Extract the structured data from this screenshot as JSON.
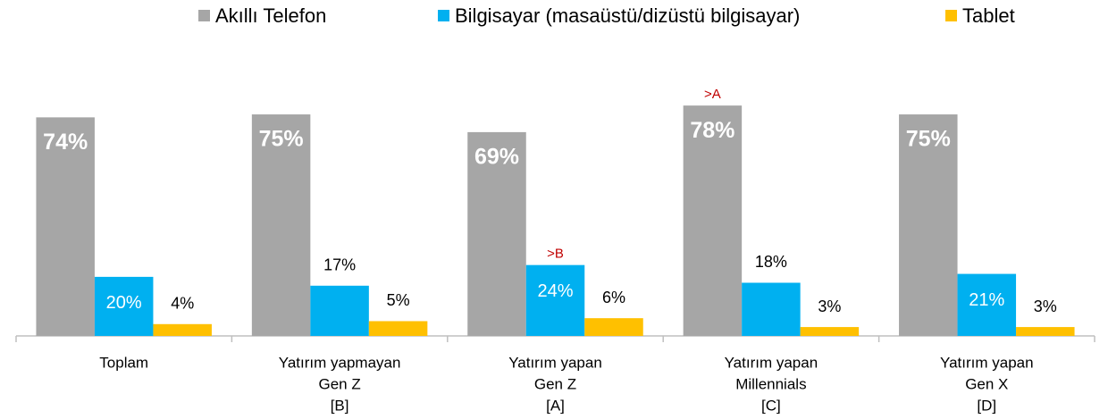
{
  "chart_data": {
    "type": "bar",
    "categories": [
      [
        "Toplam"
      ],
      [
        "Yatırım yapmayan",
        "Gen Z",
        "[B]"
      ],
      [
        "Yatırım yapan",
        "Gen Z",
        "[A]"
      ],
      [
        "Yatırım yapan",
        "Millennials",
        "[C]"
      ],
      [
        "Yatırım yapan",
        "Gen X",
        "[D]"
      ]
    ],
    "series": [
      {
        "name": "Akıllı Telefon",
        "color": "#a6a6a6",
        "values": [
          74,
          75,
          69,
          78,
          75
        ],
        "value_labels": [
          "74%",
          "75%",
          "69%",
          "78%",
          "75%"
        ],
        "annotations": [
          null,
          null,
          null,
          ">A",
          null
        ]
      },
      {
        "name": "Bilgisayar (masaüstü/dizüstü bilgisayar)",
        "color": "#00b0f0",
        "values": [
          20,
          17,
          24,
          18,
          21
        ],
        "value_labels": [
          "20%",
          "17%",
          "24%",
          "18%",
          "21%"
        ],
        "annotations": [
          null,
          null,
          ">B",
          null,
          null
        ]
      },
      {
        "name": "Tablet",
        "color": "#ffc000",
        "values": [
          4,
          5,
          6,
          3,
          3
        ],
        "value_labels": [
          "4%",
          "5%",
          "6%",
          "3%",
          "3%"
        ],
        "annotations": [
          null,
          null,
          null,
          null,
          null
        ]
      }
    ],
    "ylim": [
      0,
      85
    ],
    "legend": "top"
  }
}
